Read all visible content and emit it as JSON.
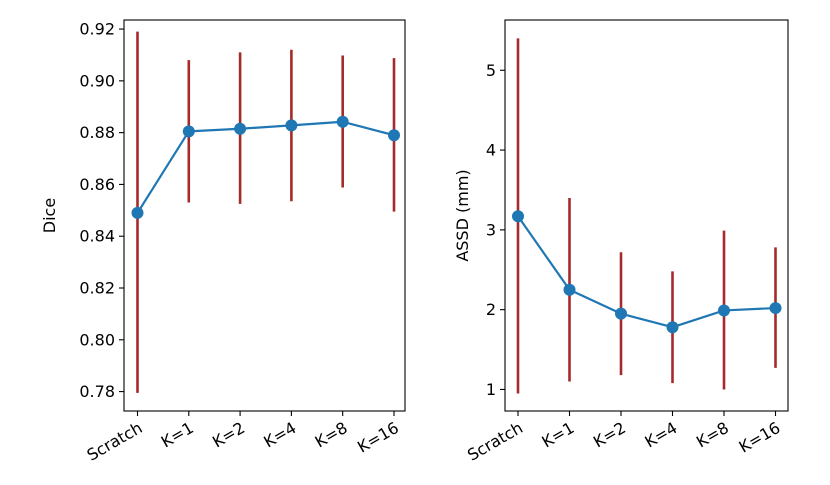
{
  "chart_data": [
    {
      "type": "line",
      "title": "",
      "xlabel": "",
      "ylabel": "Dice",
      "categories": [
        "Scratch",
        "K=1",
        "K=2",
        "K=4",
        "K=8",
        "K=16"
      ],
      "series": [
        {
          "name": "Dice",
          "values": [
            0.849,
            0.8805,
            0.8815,
            0.8828,
            0.8842,
            0.879
          ],
          "error_low": [
            0.7795,
            0.853,
            0.8525,
            0.8535,
            0.8588,
            0.8495
          ],
          "error_high": [
            0.919,
            0.908,
            0.911,
            0.912,
            0.9098,
            0.9088
          ]
        }
      ],
      "ylim": [
        0.7725,
        0.9235
      ],
      "yticks": [
        0.78,
        0.8,
        0.82,
        0.84,
        0.86,
        0.88,
        0.9,
        0.92
      ],
      "ytick_labels": [
        "0.78",
        "0.80",
        "0.82",
        "0.84",
        "0.86",
        "0.88",
        "0.90",
        "0.92"
      ],
      "grid": false,
      "colors": {
        "line": "#1f77b4",
        "error": "#a52a2a",
        "axis": "#000000"
      }
    },
    {
      "type": "line",
      "title": "",
      "xlabel": "",
      "ylabel": "ASSD (mm)",
      "categories": [
        "Scratch",
        "K=1",
        "K=2",
        "K=4",
        "K=8",
        "K=16"
      ],
      "series": [
        {
          "name": "ASSD",
          "values": [
            3.17,
            2.25,
            1.95,
            1.78,
            1.99,
            2.02
          ],
          "error_low": [
            0.95,
            1.1,
            1.18,
            1.08,
            1.0,
            1.27
          ],
          "error_high": [
            5.4,
            3.4,
            2.72,
            2.48,
            2.99,
            2.78
          ]
        }
      ],
      "ylim": [
        0.73,
        5.63
      ],
      "yticks": [
        1,
        2,
        3,
        4,
        5
      ],
      "ytick_labels": [
        "1",
        "2",
        "3",
        "4",
        "5"
      ],
      "grid": false,
      "colors": {
        "line": "#1f77b4",
        "error": "#a52a2a",
        "axis": "#000000"
      }
    }
  ]
}
